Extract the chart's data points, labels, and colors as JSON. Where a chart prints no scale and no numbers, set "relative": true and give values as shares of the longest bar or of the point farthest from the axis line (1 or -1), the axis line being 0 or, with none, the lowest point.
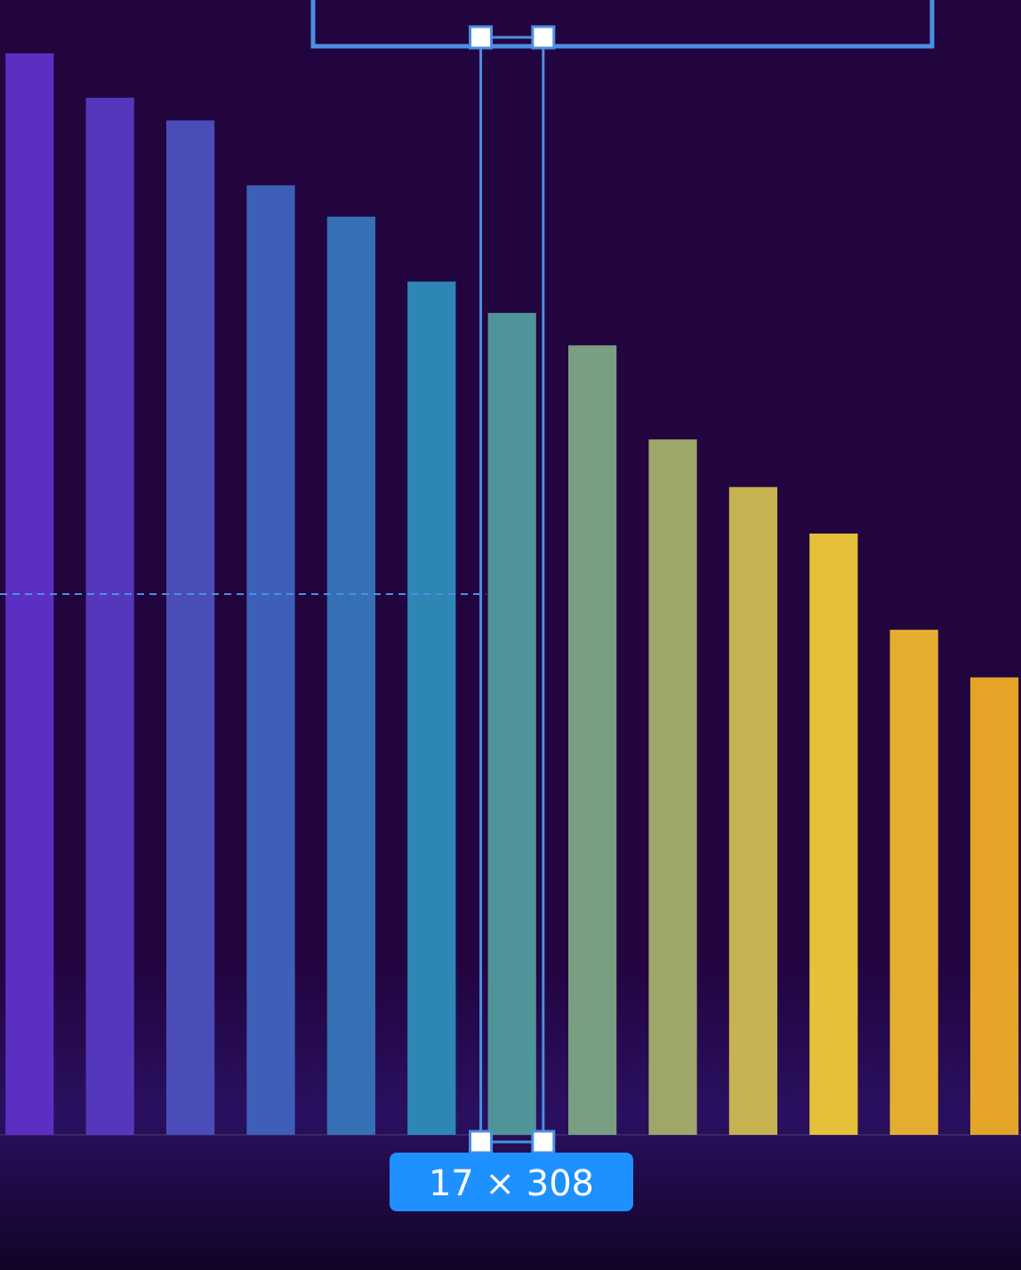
{
  "chart_data": {
    "type": "bar",
    "relative": true,
    "categories": [
      null,
      null,
      null,
      null,
      null,
      null,
      null,
      null,
      null,
      null,
      null,
      null,
      null
    ],
    "values": [
      1,
      0.959,
      0.938,
      0.878,
      0.849,
      0.789,
      0.76,
      0.73,
      0.643,
      0.599,
      0.556,
      0.467,
      0.423
    ],
    "colors": [
      "#5b2fc2",
      "#5537bb",
      "#4a4db8",
      "#3d5fb8",
      "#3570b5",
      "#2e86b5",
      "#4f9499",
      "#7a9e82",
      "#9fa66a",
      "#c4b350",
      "#e6c038",
      "#e5ad30",
      "#e3a428"
    ],
    "ref_lines": [
      {
        "axis": "y",
        "value": 0.5,
        "color": "#4a90e2",
        "line_style": "dashed"
      }
    ],
    "annotations": [
      "17 × 308"
    ]
  }
}
